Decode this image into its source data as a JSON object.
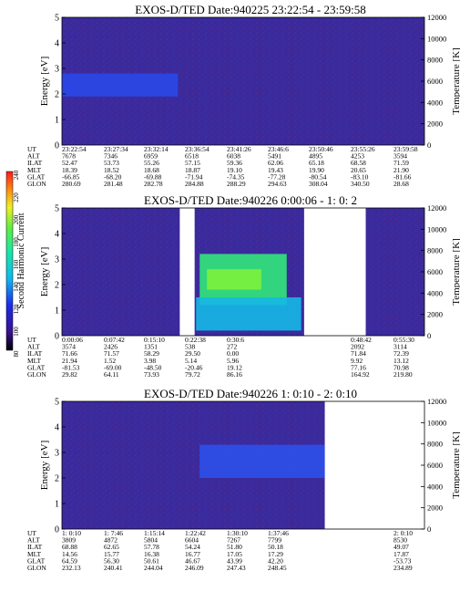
{
  "chart_data": [
    {
      "type": "heatmap",
      "title": "EXOS-D/TED   Date:940225  23:22:54 - 23:59:58",
      "ylabel": "Energy [eV]",
      "y2label": "Temperature [K]",
      "ylim": [
        0,
        5
      ],
      "y2lim": [
        0,
        12000
      ],
      "yticks": [
        "0",
        "1",
        "2",
        "3",
        "4",
        "5"
      ],
      "y2ticks": [
        "0",
        "2000",
        "4000",
        "6000",
        "8000",
        "10000",
        "12000"
      ],
      "data_intervals": [
        [
          0,
          1
        ]
      ],
      "bands": [
        {
          "x": [
            0.0,
            0.32
          ],
          "y": [
            1.9,
            2.8
          ],
          "intensity": "medium",
          "color": "#2a48e8"
        }
      ],
      "ephemeris": {
        "labels": [
          "UT",
          "ALT",
          "ILAT",
          "MLT",
          "GLAT",
          "GLON"
        ],
        "columns": [
          [
            "23:22:54",
            "7678",
            "52.47",
            "18.39",
            "-66.85",
            "280.69"
          ],
          [
            "23:27:34",
            "7346",
            "53.73",
            "18.52",
            "-68.20",
            "281.48"
          ],
          [
            "23:32:14",
            "6959",
            "55.26",
            "18.68",
            "-69.88",
            "282.78"
          ],
          [
            "23:36:54",
            "6518",
            "57.15",
            "18.87",
            "-71.94",
            "284.88"
          ],
          [
            "23:41:26",
            "6038",
            "59.36",
            "19.10",
            "-74.35",
            "288.29"
          ],
          [
            "23:46:6",
            "5491",
            "62.06",
            "19.43",
            "-77.28",
            "294.63"
          ],
          [
            "23:50:46",
            "4895",
            "65.18",
            "19.90",
            "-80.54",
            "308.04"
          ],
          [
            "23:55:26",
            "4253",
            "68.58",
            "20.65",
            "-83.10",
            "340.50"
          ],
          [
            "23:59:58",
            "3594",
            "71.59",
            "21.90",
            "-81.66",
            "28.68"
          ]
        ]
      }
    },
    {
      "type": "heatmap",
      "title": "EXOS-D/TED   Date:940226  0:00:06 - 1: 0: 2",
      "ylabel": "Energy [eV]",
      "y2label": "Temperature [K]",
      "colorbar_label": "Second Harmonic Current",
      "colorbar_ticks": [
        "80",
        "100",
        "120",
        "140",
        "160",
        "180",
        "200",
        "220",
        "240"
      ],
      "ylim": [
        0,
        5
      ],
      "y2lim": [
        0,
        12000
      ],
      "yticks": [
        "0",
        "1",
        "2",
        "3",
        "4",
        "5"
      ],
      "y2ticks": [
        "0",
        "2000",
        "4000",
        "6000",
        "8000",
        "10000",
        "12000"
      ],
      "data_intervals": [
        [
          0,
          0.325
        ],
        [
          0.366,
          0.668
        ],
        [
          0.838,
          1
        ]
      ],
      "bands": [
        {
          "x": [
            0.38,
            0.62
          ],
          "y": [
            1.2,
            3.2
          ],
          "intensity": "high",
          "color": "#32e87a"
        },
        {
          "x": [
            0.4,
            0.55
          ],
          "y": [
            1.8,
            2.6
          ],
          "intensity": "peak",
          "color": "#7cf23c"
        },
        {
          "x": [
            0.37,
            0.66
          ],
          "y": [
            0.2,
            1.5
          ],
          "intensity": "medium",
          "color": "#15b8e6"
        }
      ],
      "ephemeris": {
        "labels": [
          "UT",
          "ALT",
          "ILAT",
          "MLT",
          "GLAT",
          "GLON"
        ],
        "columns": [
          [
            "0:00:06",
            "3574",
            "71.66",
            "21.94",
            "-81.53",
            "29.82"
          ],
          [
            "0:07:42",
            "2426",
            "71.57",
            "1.52",
            "-69.00",
            "64.11"
          ],
          [
            "0:15:10",
            "1351",
            "58.29",
            "3.98",
            "-48.50",
            "73.93"
          ],
          [
            "0:22:38",
            "538",
            "29.50",
            "5.14",
            "-20.46",
            "79.72"
          ],
          [
            "0:30:6",
            "272",
            "0.00",
            "5.96",
            "19.12",
            "86.16"
          ],
          [
            "",
            "",
            "",
            "",
            "",
            ""
          ],
          [
            "",
            "",
            "",
            "",
            "",
            ""
          ],
          [
            "0:48:42",
            "2092",
            "71.84",
            "9.92",
            "77.16",
            "164.92"
          ],
          [
            "0:55:30",
            "3114",
            "72.39",
            "13.12",
            "70.98",
            "219.80"
          ]
        ]
      }
    },
    {
      "type": "heatmap",
      "title": "EXOS-D/TED   Date:940226  1: 0:10 - 2: 0:10",
      "ylabel": "Energy [eV]",
      "y2label": "Temperature [K]",
      "ylim": [
        0,
        5
      ],
      "y2lim": [
        0,
        12000
      ],
      "yticks": [
        "0",
        "1",
        "2",
        "3",
        "4",
        "5"
      ],
      "y2ticks": [
        "0",
        "2000",
        "4000",
        "6000",
        "8000",
        "10000",
        "12000"
      ],
      "data_intervals": [
        [
          0,
          0.725
        ]
      ],
      "bands": [
        {
          "x": [
            0.38,
            0.725
          ],
          "y": [
            2.0,
            3.3
          ],
          "intensity": "medium",
          "color": "#2d50ea"
        }
      ],
      "ephemeris": {
        "labels": [
          "UT",
          "ALT",
          "ILAT",
          "MLT",
          "GLAT",
          "GLON"
        ],
        "columns": [
          [
            "1: 0:10",
            "3809",
            "68.88",
            "14.56",
            "64.59",
            "232.13"
          ],
          [
            "1: 7:46",
            "4872",
            "62.65",
            "15.77",
            "56.30",
            "240.41"
          ],
          [
            "1:15:14",
            "5804",
            "57.78",
            "16.38",
            "50.61",
            "244.04"
          ],
          [
            "1:22:42",
            "6604",
            "54.24",
            "16.77",
            "46.67",
            "246.09"
          ],
          [
            "1:30:10",
            "7267",
            "51.80",
            "17.05",
            "43.99",
            "247.43"
          ],
          [
            "1:37:46",
            "7799",
            "50.18",
            "17.29",
            "42.20",
            "248.45"
          ],
          [
            "",
            "",
            "",
            "",
            "",
            ""
          ],
          [
            "",
            "",
            "",
            "",
            "",
            ""
          ],
          [
            "2: 0:10",
            "8530",
            "49.07",
            "17.87",
            "-53.73",
            "234.89"
          ]
        ]
      }
    }
  ]
}
